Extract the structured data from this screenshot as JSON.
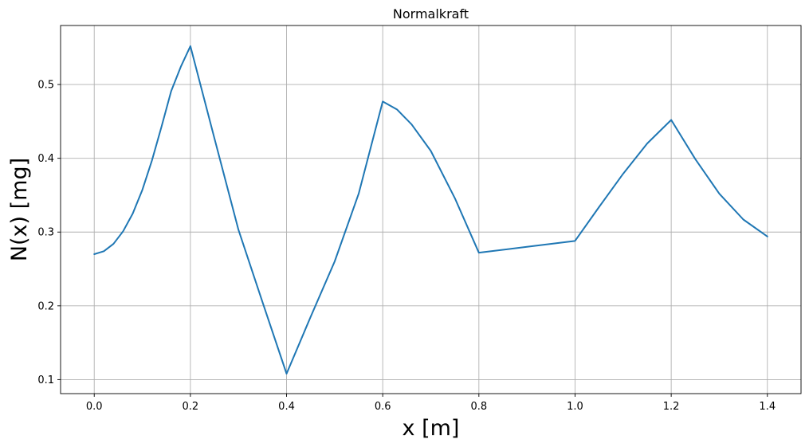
{
  "chart_data": {
    "type": "line",
    "title": "Normalkraft",
    "xlabel": "x [m]",
    "ylabel": "N(x) [mg]",
    "xlim": [
      -0.07,
      1.47
    ],
    "ylim": [
      0.081,
      0.58
    ],
    "xticks": [
      0.0,
      0.2,
      0.4,
      0.6,
      0.8,
      1.0,
      1.2,
      1.4
    ],
    "xtick_labels": [
      "0.0",
      "0.2",
      "0.4",
      "0.6",
      "0.8",
      "1.0",
      "1.2",
      "1.4"
    ],
    "yticks": [
      0.1,
      0.2,
      0.3,
      0.4,
      0.5
    ],
    "ytick_labels": [
      "0.1",
      "0.2",
      "0.3",
      "0.4",
      "0.5"
    ],
    "grid": true,
    "series": [
      {
        "color": "#1f77b4",
        "x": [
          0.0,
          0.02,
          0.04,
          0.06,
          0.08,
          0.1,
          0.12,
          0.14,
          0.16,
          0.18,
          0.2,
          0.25,
          0.3,
          0.35,
          0.4,
          0.45,
          0.5,
          0.55,
          0.6,
          0.63,
          0.66,
          0.7,
          0.75,
          0.8,
          0.9,
          1.0,
          1.05,
          1.1,
          1.15,
          1.2,
          1.25,
          1.3,
          1.35,
          1.4
        ],
        "y": [
          0.27,
          0.274,
          0.284,
          0.301,
          0.325,
          0.357,
          0.397,
          0.443,
          0.491,
          0.524,
          0.552,
          0.427,
          0.303,
          0.205,
          0.108,
          0.185,
          0.26,
          0.352,
          0.477,
          0.466,
          0.446,
          0.41,
          0.346,
          0.272,
          0.28,
          0.288,
          0.334,
          0.379,
          0.42,
          0.452,
          0.399,
          0.352,
          0.317,
          0.294
        ]
      }
    ]
  }
}
